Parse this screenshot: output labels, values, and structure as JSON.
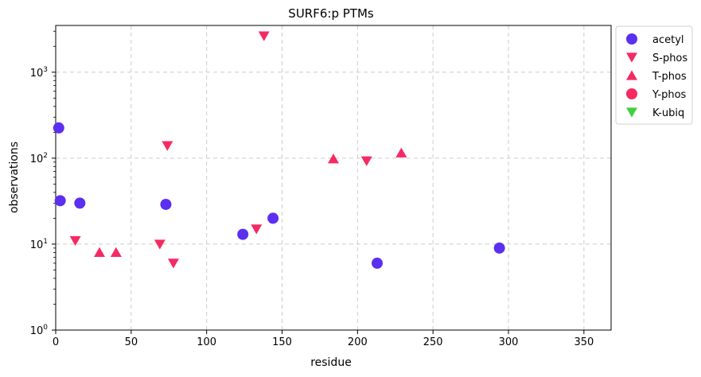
{
  "chart_data": {
    "type": "scatter",
    "title": "SURF6:p PTMs",
    "xlabel": "residue",
    "ylabel": "observations",
    "xlim": [
      0,
      368
    ],
    "ylim": [
      1,
      3500
    ],
    "yscale": "log",
    "grid": true,
    "legend_position": "outside-top-right",
    "x_ticks": [
      "0",
      "50",
      "100",
      "150",
      "200",
      "250",
      "300",
      "350"
    ],
    "y_ticks": [
      "10^0",
      "10^1",
      "10^2",
      "10^3"
    ],
    "series": [
      {
        "name": "acetyl",
        "marker": "circle",
        "color": "#5b2ff0",
        "points": [
          {
            "x": 2,
            "y": 225
          },
          {
            "x": 3,
            "y": 32
          },
          {
            "x": 16,
            "y": 30
          },
          {
            "x": 73,
            "y": 29
          },
          {
            "x": 124,
            "y": 13
          },
          {
            "x": 144,
            "y": 20
          },
          {
            "x": 213,
            "y": 6
          },
          {
            "x": 294,
            "y": 9
          }
        ]
      },
      {
        "name": "S-phos",
        "marker": "triangle-down",
        "color": "#f52a64",
        "points": [
          {
            "x": 13,
            "y": 11
          },
          {
            "x": 69,
            "y": 10
          },
          {
            "x": 74,
            "y": 140
          },
          {
            "x": 78,
            "y": 6
          },
          {
            "x": 133,
            "y": 15
          },
          {
            "x": 138,
            "y": 2650
          },
          {
            "x": 206,
            "y": 93
          }
        ]
      },
      {
        "name": "T-phos",
        "marker": "triangle-up",
        "color": "#f52a64",
        "points": [
          {
            "x": 29,
            "y": 8
          },
          {
            "x": 40,
            "y": 8
          },
          {
            "x": 184,
            "y": 98
          },
          {
            "x": 229,
            "y": 115
          }
        ]
      },
      {
        "name": "Y-phos",
        "marker": "circle",
        "color": "#f52a64",
        "points": []
      },
      {
        "name": "K-ubiq",
        "marker": "triangle-down",
        "color": "#3fd143",
        "points": []
      }
    ]
  }
}
